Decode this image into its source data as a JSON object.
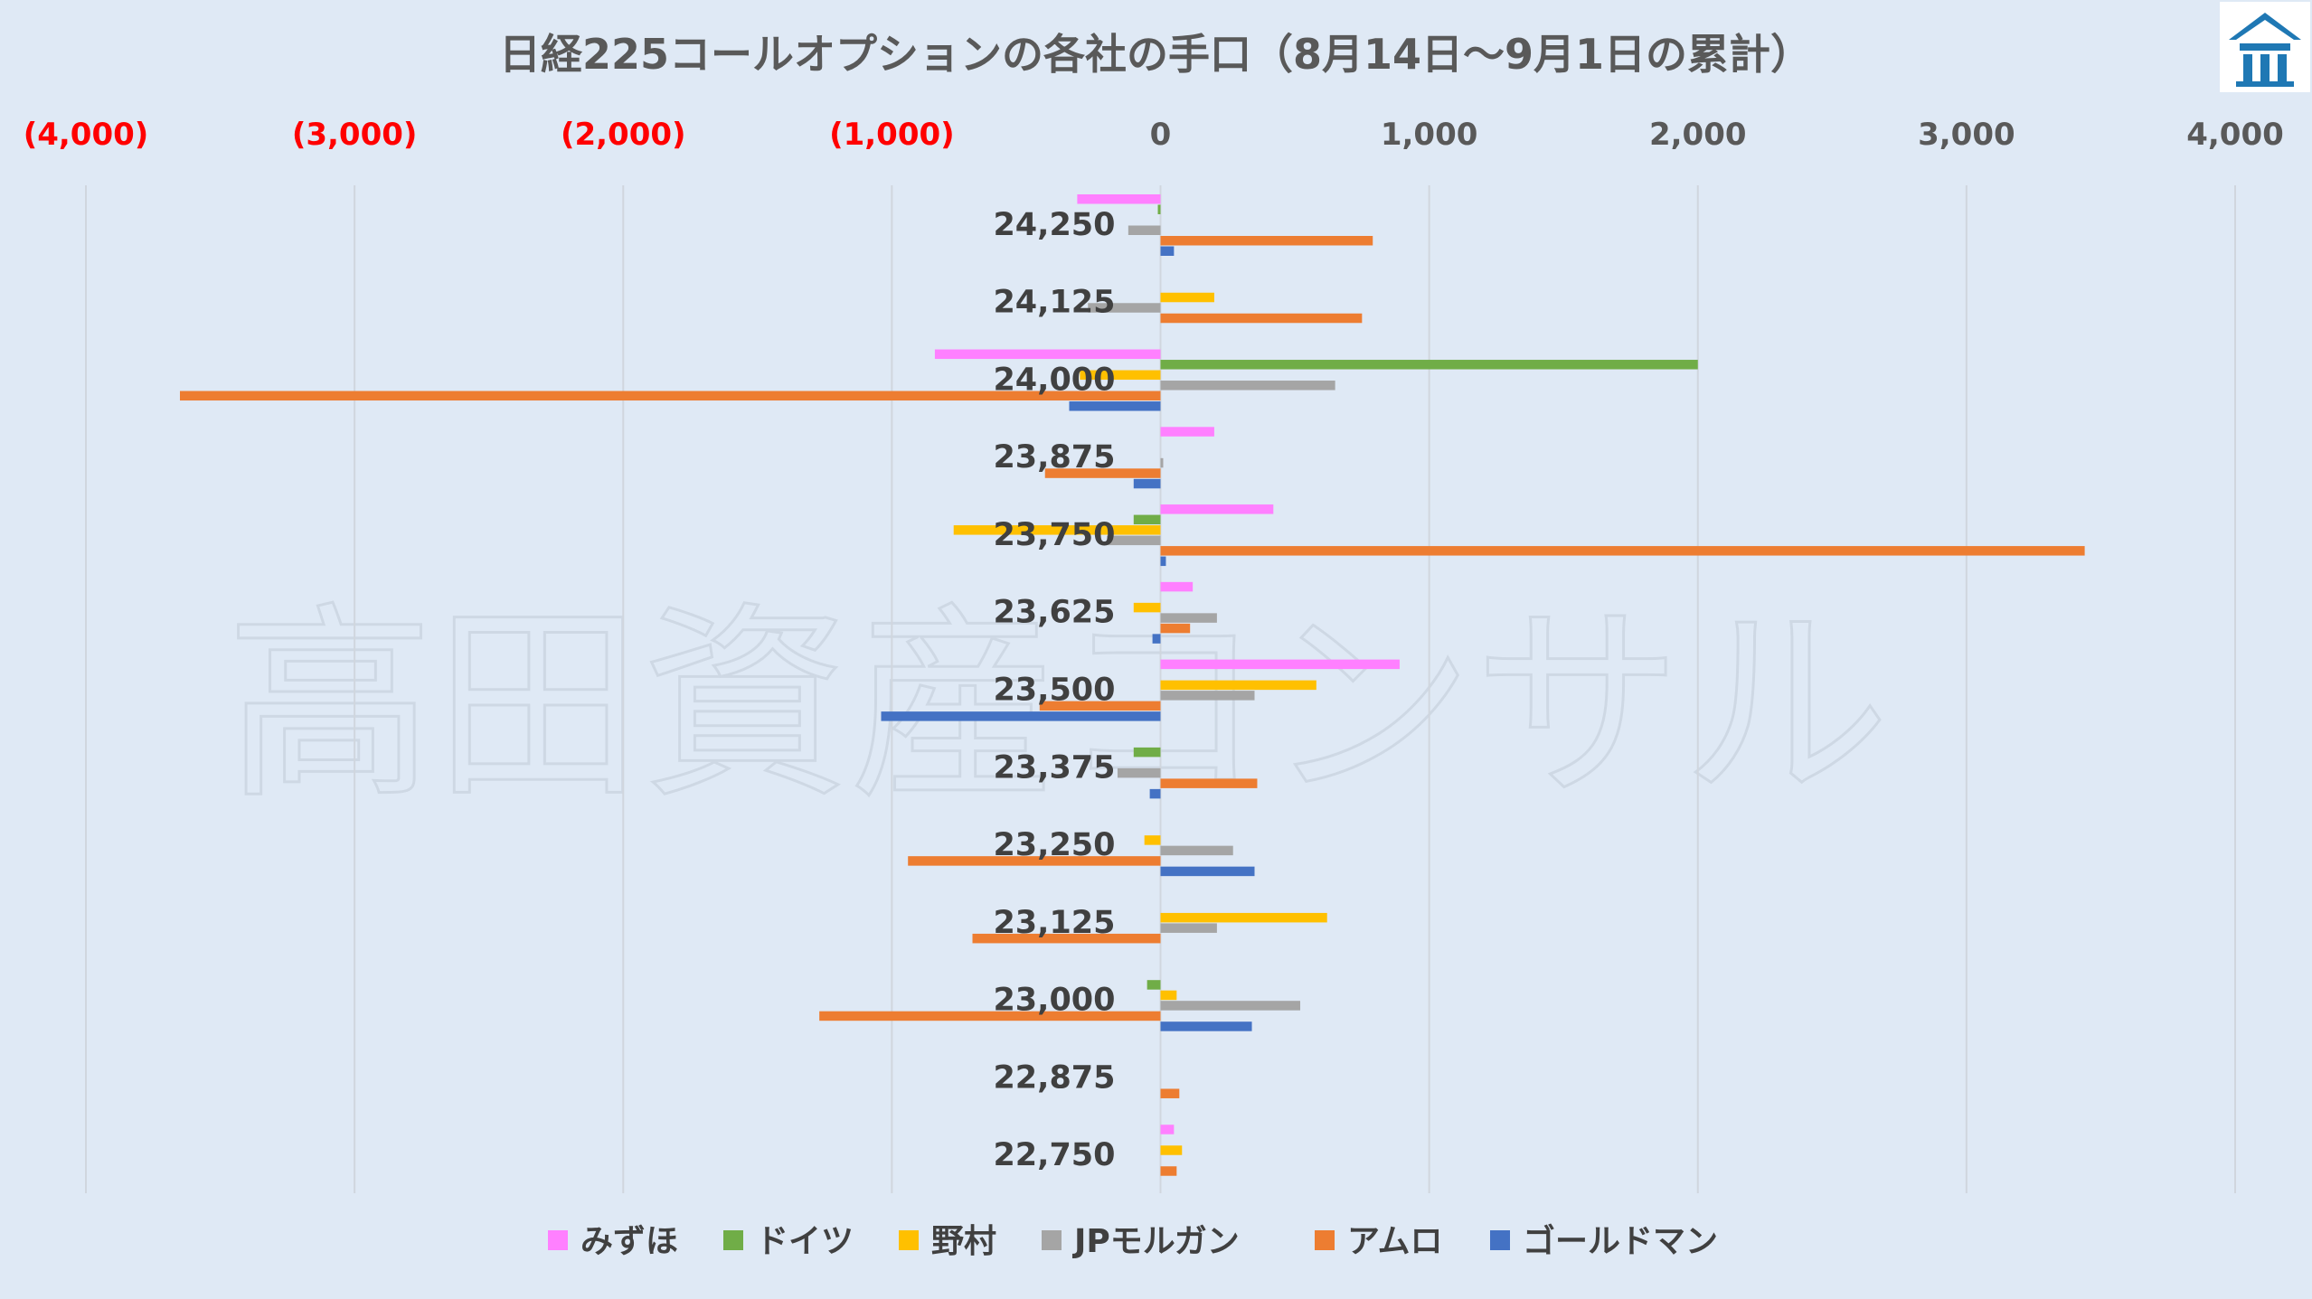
{
  "chart_data": {
    "type": "bar",
    "orientation": "horizontal",
    "title": "日経225コールオプションの各社の手口（8月14日～9月1日の累計）",
    "watermark": "高田資産コンサル",
    "xlim": [
      -4000,
      4000
    ],
    "x_ticks": [
      {
        "value": -4000,
        "label": "(4,000)"
      },
      {
        "value": -3000,
        "label": "(3,000)"
      },
      {
        "value": -2000,
        "label": "(2,000)"
      },
      {
        "value": -1000,
        "label": "(1,000)"
      },
      {
        "value": 0,
        "label": "0"
      },
      {
        "value": 1000,
        "label": "1,000"
      },
      {
        "value": 2000,
        "label": "2,000"
      },
      {
        "value": 3000,
        "label": "3,000"
      },
      {
        "value": 4000,
        "label": "4,000"
      }
    ],
    "negative_tick_color": "#ff0000",
    "positive_tick_color": "#595959",
    "categories": [
      "24,250",
      "24,125",
      "24,000",
      "23,875",
      "23,750",
      "23,625",
      "23,500",
      "23,375",
      "23,250",
      "23,125",
      "23,000",
      "22,875",
      "22,750"
    ],
    "series": [
      {
        "name": "みずほ",
        "color": "#ff80ff",
        "values": [
          -310,
          0,
          -840,
          200,
          420,
          120,
          890,
          0,
          0,
          0,
          0,
          0,
          50
        ]
      },
      {
        "name": "ドイツ",
        "color": "#70ad47",
        "values": [
          -10,
          0,
          2000,
          0,
          -100,
          0,
          0,
          -100,
          0,
          0,
          -50,
          0,
          0
        ]
      },
      {
        "name": "野村",
        "color": "#ffc000",
        "values": [
          0,
          200,
          -300,
          0,
          -770,
          -100,
          580,
          0,
          -60,
          620,
          60,
          0,
          80
        ]
      },
      {
        "name": "JPモルガン",
        "color": "#a5a5a5",
        "values": [
          -120,
          -270,
          650,
          10,
          -200,
          210,
          350,
          -160,
          270,
          210,
          520,
          0,
          0
        ]
      },
      {
        "name": "アムロ",
        "color": "#ed7d31",
        "values": [
          790,
          750,
          -3650,
          -430,
          3440,
          110,
          -450,
          360,
          -940,
          -700,
          -1270,
          70,
          60
        ]
      },
      {
        "name": "ゴールドマン",
        "color": "#4472c4",
        "values": [
          50,
          0,
          -340,
          -100,
          20,
          -30,
          -1040,
          -40,
          350,
          0,
          340,
          0,
          0
        ]
      }
    ],
    "legend_position": "bottom",
    "grid": true
  }
}
